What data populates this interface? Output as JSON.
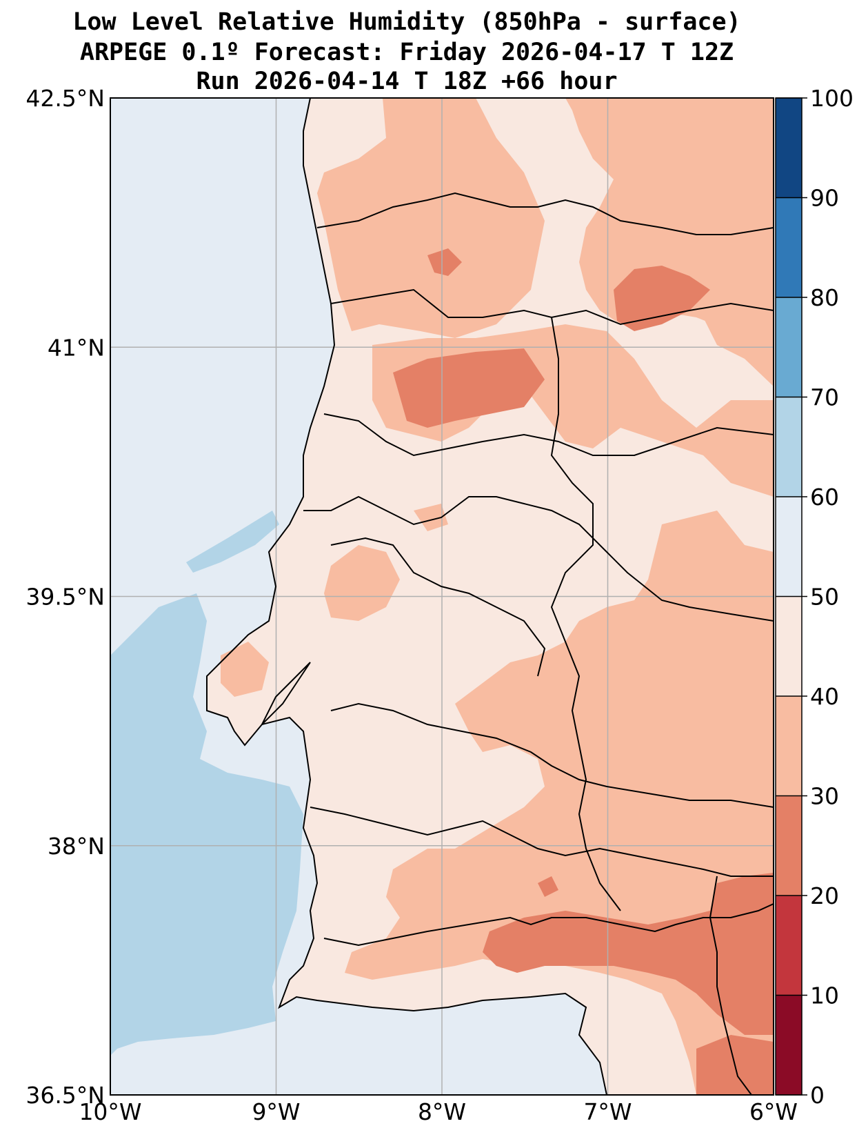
{
  "titles": [
    "Low Level Relative Humidity (850hPa - surface)",
    "ARPEGE 0.1º Forecast: Friday 2026-04-17 T 12Z",
    "Run 2026-04-14 T 18Z +66 hour"
  ],
  "map": {
    "lon_range": [
      -10,
      -6
    ],
    "lat_range": [
      36.5,
      42.5
    ],
    "lat_ticks": [
      {
        "value": 42.5,
        "label": "42.5°N"
      },
      {
        "value": 41.0,
        "label": "41°N"
      },
      {
        "value": 39.5,
        "label": "39.5°N"
      },
      {
        "value": 38.0,
        "label": "38°N"
      },
      {
        "value": 36.5,
        "label": "36.5°N"
      }
    ],
    "lon_ticks": [
      {
        "value": -10,
        "label": "10°W"
      },
      {
        "value": -9,
        "label": "9°W"
      },
      {
        "value": -8,
        "label": "8°W"
      },
      {
        "value": -7,
        "label": "7°W"
      },
      {
        "value": -6,
        "label": "6°W"
      }
    ],
    "gridlines": true
  },
  "colorbar": {
    "levels": [
      0,
      10,
      20,
      30,
      40,
      50,
      60,
      70,
      80,
      90,
      100
    ],
    "labels": [
      "0",
      "10",
      "20",
      "30",
      "40",
      "50",
      "60",
      "70",
      "80",
      "90",
      "100"
    ],
    "colors": [
      "#8b0b26",
      "#c3363d",
      "#e48066",
      "#f8bca1",
      "#f9e8e0",
      "#e4ecf4",
      "#b2d4e7",
      "#69aad2",
      "#3079b7",
      "#114683"
    ]
  }
}
